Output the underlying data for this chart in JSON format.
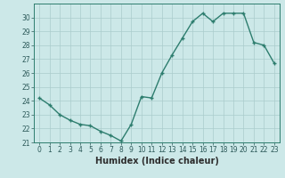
{
  "x": [
    0,
    1,
    2,
    3,
    4,
    5,
    6,
    7,
    8,
    9,
    10,
    11,
    12,
    13,
    14,
    15,
    16,
    17,
    18,
    19,
    20,
    21,
    22,
    23
  ],
  "y": [
    24.2,
    23.7,
    23.0,
    22.6,
    22.3,
    22.2,
    21.8,
    21.5,
    21.1,
    22.3,
    24.3,
    24.2,
    26.0,
    27.3,
    28.5,
    29.7,
    30.3,
    29.7,
    30.3,
    30.3,
    30.3,
    28.2,
    28.0,
    26.7
  ],
  "line_color": "#2d7d6e",
  "marker": "+",
  "marker_size": 3.5,
  "bg_color": "#cce8e8",
  "grid_color": "#aacccc",
  "xlabel": "Humidex (Indice chaleur)",
  "ylim": [
    21,
    31
  ],
  "xlim": [
    -0.5,
    23.5
  ],
  "yticks": [
    21,
    22,
    23,
    24,
    25,
    26,
    27,
    28,
    29,
    30
  ],
  "xticks": [
    0,
    1,
    2,
    3,
    4,
    5,
    6,
    7,
    8,
    9,
    10,
    11,
    12,
    13,
    14,
    15,
    16,
    17,
    18,
    19,
    20,
    21,
    22,
    23
  ],
  "tick_fontsize": 5.5,
  "xlabel_fontsize": 7,
  "line_width": 1.0,
  "marker_color": "#2d7d6e"
}
